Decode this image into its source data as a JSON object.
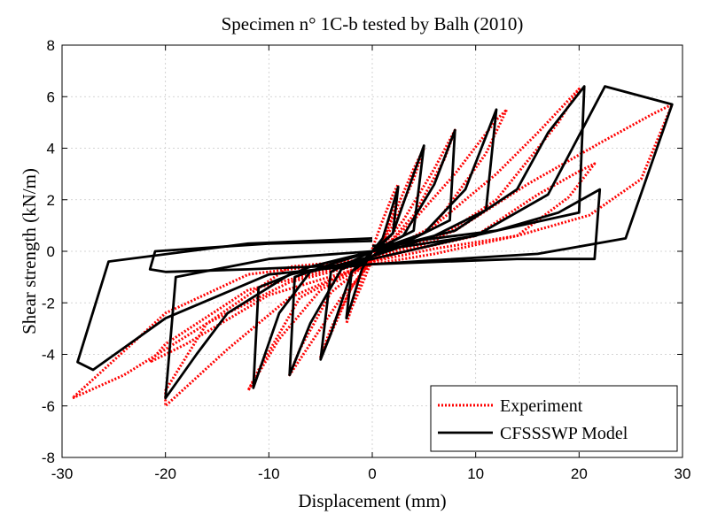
{
  "chart_data": {
    "type": "line",
    "title": "Specimen n° 1C-b tested by Balh (2010)",
    "xlabel": "Displacement (mm)",
    "ylabel": "Shear strength (kN/m)",
    "xlim": [
      -30,
      30
    ],
    "ylim": [
      -8,
      8
    ],
    "xticks": [
      -30,
      -20,
      -10,
      0,
      10,
      20,
      30
    ],
    "yticks": [
      -8,
      -6,
      -4,
      -2,
      0,
      2,
      4,
      6,
      8
    ],
    "grid": true,
    "legend_position": "bottom-right",
    "series": [
      {
        "name": "Experiment",
        "color": "#ff0000",
        "style": "dotted",
        "loops": [
          [
            [
              -1,
              -0.7
            ],
            [
              0,
              -0.3
            ],
            [
              1,
              0.3
            ],
            [
              2,
              1.5
            ],
            [
              2.5,
              2.6
            ],
            [
              2,
              2.2
            ],
            [
              1,
              1.2
            ],
            [
              0,
              0.1
            ],
            [
              -1,
              -1
            ],
            [
              -2,
              -2.2
            ],
            [
              -2.5,
              -2.8
            ],
            [
              -2,
              -2.2
            ],
            [
              -1,
              -1.3
            ],
            [
              0,
              -0.3
            ]
          ],
          [
            [
              0,
              -0.2
            ],
            [
              1,
              0.4
            ],
            [
              2.5,
              1.8
            ],
            [
              4,
              3.2
            ],
            [
              5,
              4.0
            ],
            [
              4,
              2.8
            ],
            [
              2,
              1.0
            ],
            [
              0,
              -0.3
            ],
            [
              -2,
              -1.4
            ],
            [
              -4,
              -3.0
            ],
            [
              -5,
              -4.1
            ],
            [
              -4,
              -3.2
            ],
            [
              -2,
              -1.4
            ],
            [
              0,
              -0.2
            ]
          ],
          [
            [
              0,
              -0.3
            ],
            [
              3,
              1.2
            ],
            [
              6,
              3.2
            ],
            [
              8,
              4.7
            ],
            [
              7,
              3.6
            ],
            [
              4,
              1.4
            ],
            [
              0,
              -0.4
            ],
            [
              -3,
              -1.8
            ],
            [
              -6,
              -3.6
            ],
            [
              -8,
              -4.8
            ],
            [
              -7,
              -3.8
            ],
            [
              -4,
              -1.6
            ],
            [
              0,
              -0.3
            ]
          ],
          [
            [
              0,
              -0.3
            ],
            [
              4,
              1.2
            ],
            [
              8,
              3.0
            ],
            [
              12,
              5.1
            ],
            [
              13,
              5.5
            ],
            [
              11,
              3.8
            ],
            [
              6,
              1.0
            ],
            [
              0,
              -0.4
            ],
            [
              -5,
              -1.5
            ],
            [
              -9,
              -3.4
            ],
            [
              -12,
              -5.4
            ],
            [
              -11,
              -4.6
            ],
            [
              -7,
              -1.8
            ],
            [
              0,
              -0.3
            ]
          ],
          [
            [
              0,
              -0.3
            ],
            [
              6,
              1.0
            ],
            [
              12,
              3.0
            ],
            [
              16,
              4.6
            ],
            [
              20,
              6.3
            ],
            [
              18,
              5.0
            ],
            [
              12,
              2.0
            ],
            [
              6,
              0.4
            ],
            [
              0,
              -0.4
            ],
            [
              -8,
              -1.8
            ],
            [
              -14,
              -3.8
            ],
            [
              -20,
              -6.0
            ],
            [
              -20,
              -5.4
            ],
            [
              -16,
              -2.8
            ],
            [
              -8,
              -0.6
            ],
            [
              0,
              -0.3
            ]
          ],
          [
            [
              0,
              -0.3
            ],
            [
              8,
              0.8
            ],
            [
              15,
              2.6
            ],
            [
              22,
              4.2
            ],
            [
              27,
              5.3
            ],
            [
              29,
              5.7
            ],
            [
              26,
              2.8
            ],
            [
              21,
              1.4
            ],
            [
              14,
              0.6
            ],
            [
              6,
              0.1
            ],
            [
              0,
              -0.4
            ],
            [
              -8,
              -1.2
            ],
            [
              -16,
              -2.8
            ],
            [
              -24,
              -4.8
            ],
            [
              -29,
              -5.7
            ],
            [
              -26,
              -4.6
            ],
            [
              -20,
              -2.4
            ],
            [
              -12,
              -0.9
            ],
            [
              0,
              -0.3
            ]
          ],
          [
            [
              0,
              -0.3
            ],
            [
              10,
              0.6
            ],
            [
              16,
              2.2
            ],
            [
              20,
              3.1
            ],
            [
              21.5,
              3.4
            ],
            [
              19,
              2.1
            ],
            [
              14,
              0.6
            ],
            [
              6,
              -0.1
            ],
            [
              0,
              -0.5
            ],
            [
              -10,
              -1.7
            ],
            [
              -18,
              -3.6
            ],
            [
              -21.5,
              -4.3
            ],
            [
              -20,
              -3.6
            ],
            [
              -12,
              -1.5
            ],
            [
              0,
              -0.3
            ]
          ]
        ]
      },
      {
        "name": "CFSSSWP Model",
        "color": "#000000",
        "style": "solid",
        "loops": [
          [
            [
              -1,
              -0.5
            ],
            [
              0,
              0
            ],
            [
              1,
              0.5
            ],
            [
              2,
              1.8
            ],
            [
              2.5,
              2.5
            ],
            [
              2,
              0.7
            ],
            [
              1,
              0.3
            ],
            [
              0,
              0
            ],
            [
              -1,
              -0.7
            ],
            [
              -2,
              -2.0
            ],
            [
              -2.5,
              -2.6
            ],
            [
              -2,
              -0.8
            ],
            [
              -1,
              -0.4
            ],
            [
              0,
              0
            ]
          ],
          [
            [
              0,
              0
            ],
            [
              2,
              0.7
            ],
            [
              4,
              3.0
            ],
            [
              5,
              4.1
            ],
            [
              4,
              0.8
            ],
            [
              2,
              0.4
            ],
            [
              0,
              -0.2
            ],
            [
              -2,
              -0.8
            ],
            [
              -4,
              -3.2
            ],
            [
              -5,
              -4.2
            ],
            [
              -4,
              -0.8
            ],
            [
              -2,
              -0.4
            ],
            [
              0,
              0
            ]
          ],
          [
            [
              0,
              0
            ],
            [
              3,
              0.6
            ],
            [
              6,
              2.6
            ],
            [
              8,
              4.7
            ],
            [
              7.5,
              1.2
            ],
            [
              4,
              0.5
            ],
            [
              0,
              -0.2
            ],
            [
              -3,
              -0.7
            ],
            [
              -6,
              -2.8
            ],
            [
              -8,
              -4.8
            ],
            [
              -7.5,
              -1.0
            ],
            [
              -4,
              -0.5
            ],
            [
              0,
              0
            ]
          ],
          [
            [
              0,
              0
            ],
            [
              5,
              0.7
            ],
            [
              9,
              2.4
            ],
            [
              12,
              5.5
            ],
            [
              11,
              1.6
            ],
            [
              6,
              0.6
            ],
            [
              0,
              -0.2
            ],
            [
              -6,
              -0.8
            ],
            [
              -9,
              -2.4
            ],
            [
              -11.5,
              -5.3
            ],
            [
              -11,
              -1.4
            ],
            [
              -6,
              -0.6
            ],
            [
              0,
              0
            ]
          ],
          [
            [
              0,
              0
            ],
            [
              8,
              0.8
            ],
            [
              14,
              2.4
            ],
            [
              17,
              4.6
            ],
            [
              20.5,
              6.4
            ],
            [
              20,
              1.5
            ],
            [
              12,
              0.8
            ],
            [
              0,
              -0.3
            ],
            [
              -8,
              -0.9
            ],
            [
              -14,
              -2.4
            ],
            [
              -17,
              -4.0
            ],
            [
              -20,
              -5.7
            ],
            [
              -19,
              -1.0
            ],
            [
              -10,
              -0.3
            ],
            [
              0,
              0
            ]
          ],
          [
            [
              0,
              0
            ],
            [
              10,
              0.6
            ],
            [
              17,
              2.2
            ],
            [
              22.5,
              6.4
            ],
            [
              29,
              5.7
            ],
            [
              24.5,
              0.5
            ],
            [
              16,
              -0.1
            ],
            [
              0,
              -0.5
            ],
            [
              -10,
              -0.9
            ],
            [
              -20,
              -2.6
            ],
            [
              -27,
              -4.6
            ],
            [
              -28.5,
              -4.3
            ],
            [
              -25.5,
              -0.4
            ],
            [
              -12,
              0.3
            ],
            [
              0,
              0.5
            ]
          ],
          [
            [
              0,
              0.2
            ],
            [
              12,
              0.8
            ],
            [
              18,
              1.5
            ],
            [
              22,
              2.4
            ],
            [
              21.5,
              -0.3
            ],
            [
              14,
              -0.3
            ],
            [
              0,
              -0.5
            ],
            [
              -12,
              -0.7
            ],
            [
              -20,
              -0.8
            ],
            [
              -21.5,
              -0.7
            ],
            [
              -21,
              0
            ],
            [
              -10,
              0.3
            ],
            [
              0,
              0.4
            ]
          ]
        ]
      }
    ]
  }
}
